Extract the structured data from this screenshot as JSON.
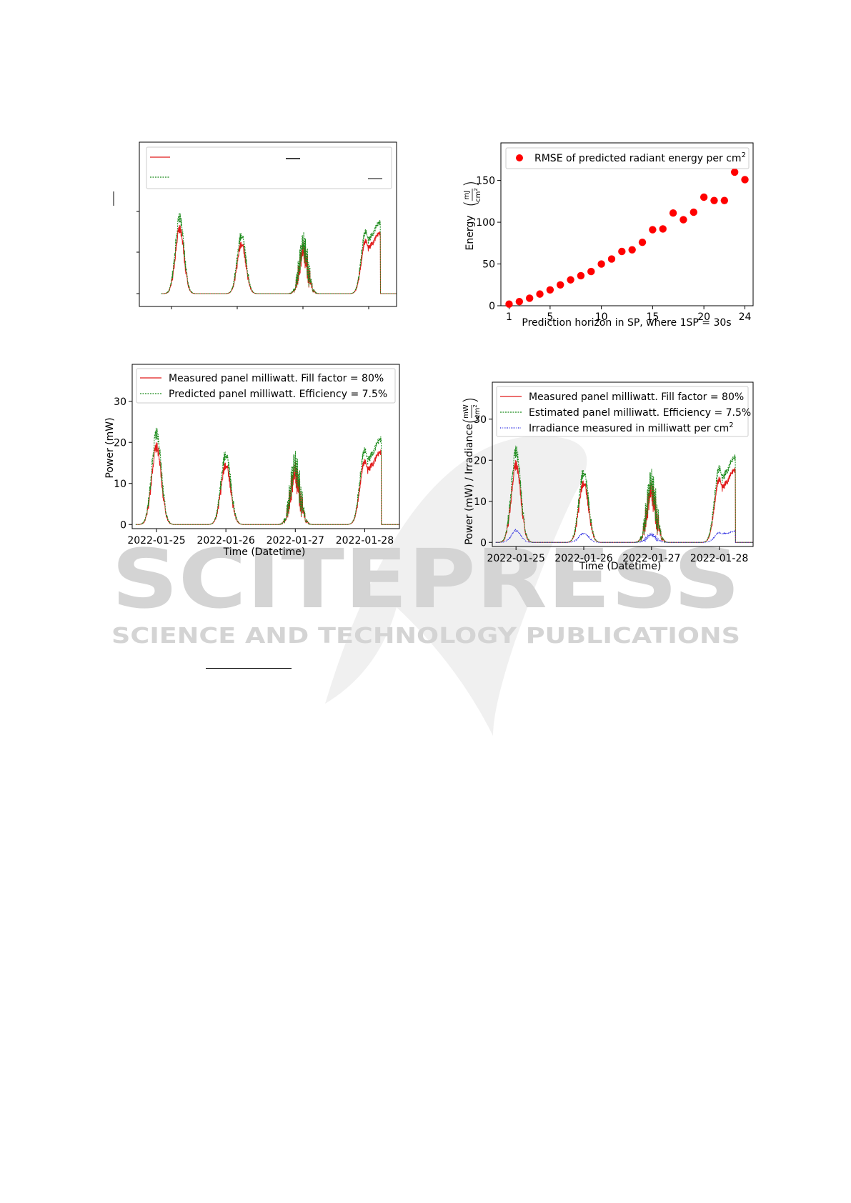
{
  "watermark": {
    "name": "SCITEPRESS",
    "tagline": "SCIENCE AND TECHNOLOGY PUBLICATIONS",
    "color": "#d4d4d4"
  },
  "chart_data": [
    {
      "type": "line",
      "x_ticks": [],
      "y_ticks": [],
      "xlim": [
        0,
        4
      ],
      "ylim": [
        0,
        30
      ],
      "legend_position": "top",
      "series": [
        {
          "color": "#e11b1b",
          "style": "solid",
          "scale": 0.85
        },
        {
          "color": "#1a8a1a",
          "style": "dashed",
          "scale": 1.0
        }
      ]
    },
    {
      "type": "scatter",
      "x": [
        1,
        2,
        3,
        4,
        5,
        6,
        7,
        8,
        9,
        10,
        11,
        12,
        13,
        14,
        15,
        16,
        17,
        18,
        19,
        20,
        21,
        22,
        23,
        24
      ],
      "y": [
        2,
        5,
        9,
        14,
        19,
        25,
        31,
        36,
        41,
        50,
        56,
        65,
        67,
        76,
        91,
        92,
        111,
        103,
        112,
        130,
        126,
        126,
        160,
        151
      ],
      "x_ticks": [
        1,
        5,
        10,
        15,
        20,
        24
      ],
      "y_ticks": [
        0,
        50,
        100,
        150
      ],
      "xlim": [
        0.2,
        24.8
      ],
      "ylim": [
        0,
        195
      ],
      "xlabel": "Prediction horizon in SP, where 1SP = 30s",
      "ylabel": "Energy",
      "ylabel_unit_num": "mJ",
      "ylabel_unit_den": "cm",
      "ylabel_unit_exp": "2",
      "color": "#ff0000",
      "legend_position": "top-right",
      "legend": {
        "label": "RMSE of predicted radiant energy per cm",
        "sup": "2"
      }
    },
    {
      "type": "line",
      "x_ticks": [
        "2022-01-25",
        "2022-01-26",
        "2022-01-27",
        "2022-01-28"
      ],
      "y_ticks": [
        0,
        10,
        20,
        30
      ],
      "xlim": [
        -0.35,
        3.5
      ],
      "ylim": [
        -1,
        39
      ],
      "xlabel": "Time (Datetime)",
      "ylabel": "Power (mW)",
      "legend_position": "top-left",
      "series": [
        {
          "name": "Measured panel milliwatt. Fill factor = 80%",
          "color": "#e11b1b",
          "style": "solid",
          "scale": 0.85
        },
        {
          "name": "Predicted panel milliwatt. Efficiency = 7.5%",
          "color": "#1a8a1a",
          "style": "dashed",
          "scale": 1.0
        }
      ]
    },
    {
      "type": "line",
      "x_ticks": [
        "2022-01-25",
        "2022-01-26",
        "2022-01-27",
        "2022-01-28"
      ],
      "y_ticks": [
        0,
        10,
        20,
        30
      ],
      "xlim": [
        -0.35,
        3.5
      ],
      "ylim": [
        -1,
        39
      ],
      "xlabel": "Time (Datetime)",
      "ylabel": "Power (mW) / Irradiance",
      "ylabel_unit_num": "mW",
      "ylabel_unit_den": "cm",
      "ylabel_unit_exp": "2",
      "legend_position": "top-left",
      "series": [
        {
          "name": "Measured panel milliwatt. Fill factor = 80%",
          "color": "#e11b1b",
          "style": "solid",
          "scale": 0.85
        },
        {
          "name": "Estimated panel milliwatt. Efficiency = 7.5%",
          "color": "#1a8a1a",
          "style": "dashed",
          "scale": 1.0
        },
        {
          "name": "Irradiance measured in milliwatt per cm",
          "sup": "2",
          "color": "#1f1fe0",
          "style": "dotted",
          "scale": 0.13
        }
      ]
    }
  ]
}
